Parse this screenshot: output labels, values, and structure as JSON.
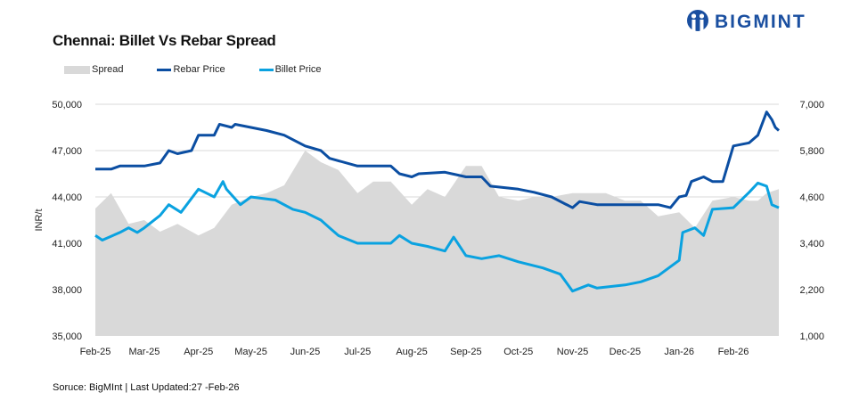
{
  "logo_text": "BIGMINT",
  "source": "Soruce: BigMInt | Last Updated:27 -Feb-26",
  "colors": {
    "spread": "#d9d9d9",
    "rebar": "#0b4ea2",
    "billet": "#0aa2e0",
    "grid": "#d9d9d9"
  },
  "chart_data": {
    "type": "line",
    "title": "Chennai: Billet Vs Rebar Spread",
    "ylabel": "INR/t",
    "ylim": [
      35000,
      50000
    ],
    "y2lim": [
      1000,
      7000
    ],
    "yticks": [
      "35,000",
      "38,000",
      "41,000",
      "44,000",
      "47,000",
      "50,000"
    ],
    "y2ticks": [
      "1,000",
      "2,200",
      "3,400",
      "4,600",
      "5,800",
      "7,000"
    ],
    "xticks": [
      "Feb-25",
      "Mar-25",
      "Apr-25",
      "May-25",
      "Jun-25",
      "Jul-25",
      "Aug-25",
      "Sep-25",
      "Oct-25",
      "Nov-25",
      "Dec-25",
      "Jan-26",
      "Feb-26"
    ],
    "xrange": [
      "2025-02-01",
      "2026-02-27"
    ],
    "grid": true,
    "legend_position": "top-left",
    "series": [
      {
        "name": "Spread",
        "type": "area",
        "axis": "right",
        "points": [
          [
            "2025-02-01",
            4300
          ],
          [
            "2025-02-10",
            4700
          ],
          [
            "2025-02-20",
            3900
          ],
          [
            "2025-03-01",
            4000
          ],
          [
            "2025-03-10",
            3700
          ],
          [
            "2025-03-20",
            3900
          ],
          [
            "2025-04-01",
            3600
          ],
          [
            "2025-04-10",
            3800
          ],
          [
            "2025-04-20",
            4400
          ],
          [
            "2025-05-01",
            4600
          ],
          [
            "2025-05-10",
            4700
          ],
          [
            "2025-05-20",
            4900
          ],
          [
            "2025-06-01",
            5800
          ],
          [
            "2025-06-10",
            5500
          ],
          [
            "2025-06-20",
            5300
          ],
          [
            "2025-07-01",
            4700
          ],
          [
            "2025-07-10",
            5000
          ],
          [
            "2025-07-20",
            5000
          ],
          [
            "2025-08-01",
            4400
          ],
          [
            "2025-08-10",
            4800
          ],
          [
            "2025-08-20",
            4600
          ],
          [
            "2025-09-01",
            5400
          ],
          [
            "2025-09-10",
            5400
          ],
          [
            "2025-09-20",
            4600
          ],
          [
            "2025-10-01",
            4500
          ],
          [
            "2025-10-10",
            4600
          ],
          [
            "2025-10-20",
            4600
          ],
          [
            "2025-11-01",
            4700
          ],
          [
            "2025-11-10",
            4700
          ],
          [
            "2025-11-20",
            4700
          ],
          [
            "2025-12-01",
            4500
          ],
          [
            "2025-12-10",
            4500
          ],
          [
            "2025-12-20",
            4100
          ],
          [
            "2026-01-01",
            4200
          ],
          [
            "2026-01-10",
            3800
          ],
          [
            "2026-01-20",
            4500
          ],
          [
            "2026-02-01",
            4600
          ],
          [
            "2026-02-10",
            4500
          ],
          [
            "2026-02-15",
            4500
          ],
          [
            "2026-02-20",
            4700
          ],
          [
            "2026-02-27",
            4800
          ]
        ]
      },
      {
        "name": "Rebar Price",
        "type": "line",
        "axis": "left",
        "points": [
          [
            "2025-02-01",
            45800
          ],
          [
            "2025-02-10",
            45800
          ],
          [
            "2025-02-15",
            46000
          ],
          [
            "2025-03-01",
            46000
          ],
          [
            "2025-03-10",
            46200
          ],
          [
            "2025-03-15",
            47000
          ],
          [
            "2025-03-20",
            46800
          ],
          [
            "2025-03-28",
            47000
          ],
          [
            "2025-04-01",
            48000
          ],
          [
            "2025-04-10",
            48000
          ],
          [
            "2025-04-13",
            48700
          ],
          [
            "2025-04-20",
            48500
          ],
          [
            "2025-04-22",
            48700
          ],
          [
            "2025-05-01",
            48500
          ],
          [
            "2025-05-10",
            48300
          ],
          [
            "2025-05-20",
            48000
          ],
          [
            "2025-06-01",
            47300
          ],
          [
            "2025-06-10",
            47000
          ],
          [
            "2025-06-15",
            46500
          ],
          [
            "2025-07-01",
            46000
          ],
          [
            "2025-07-20",
            46000
          ],
          [
            "2025-07-25",
            45500
          ],
          [
            "2025-08-01",
            45300
          ],
          [
            "2025-08-05",
            45500
          ],
          [
            "2025-08-20",
            45600
          ],
          [
            "2025-09-01",
            45300
          ],
          [
            "2025-09-10",
            45300
          ],
          [
            "2025-09-15",
            44700
          ],
          [
            "2025-10-01",
            44500
          ],
          [
            "2025-10-10",
            44300
          ],
          [
            "2025-10-20",
            44000
          ],
          [
            "2025-11-01",
            43300
          ],
          [
            "2025-11-05",
            43700
          ],
          [
            "2025-11-15",
            43500
          ],
          [
            "2025-12-01",
            43500
          ],
          [
            "2025-12-20",
            43500
          ],
          [
            "2025-12-27",
            43300
          ],
          [
            "2026-01-01",
            44000
          ],
          [
            "2026-01-05",
            44100
          ],
          [
            "2026-01-08",
            45000
          ],
          [
            "2026-01-15",
            45300
          ],
          [
            "2026-01-20",
            45000
          ],
          [
            "2026-01-26",
            45000
          ],
          [
            "2026-02-01",
            47300
          ],
          [
            "2026-02-10",
            47500
          ],
          [
            "2026-02-15",
            48000
          ],
          [
            "2026-02-20",
            49500
          ],
          [
            "2026-02-23",
            49000
          ],
          [
            "2026-02-25",
            48500
          ],
          [
            "2026-02-27",
            48300
          ]
        ]
      },
      {
        "name": "Billet Price",
        "type": "line",
        "axis": "left",
        "points": [
          [
            "2025-02-01",
            41500
          ],
          [
            "2025-02-05",
            41200
          ],
          [
            "2025-02-15",
            41700
          ],
          [
            "2025-02-20",
            42000
          ],
          [
            "2025-02-25",
            41700
          ],
          [
            "2025-03-01",
            42000
          ],
          [
            "2025-03-10",
            42800
          ],
          [
            "2025-03-15",
            43500
          ],
          [
            "2025-03-22",
            43000
          ],
          [
            "2025-04-01",
            44500
          ],
          [
            "2025-04-10",
            44000
          ],
          [
            "2025-04-15",
            45000
          ],
          [
            "2025-04-17",
            44500
          ],
          [
            "2025-04-25",
            43500
          ],
          [
            "2025-05-01",
            44000
          ],
          [
            "2025-05-15",
            43800
          ],
          [
            "2025-05-25",
            43200
          ],
          [
            "2025-06-01",
            43000
          ],
          [
            "2025-06-10",
            42500
          ],
          [
            "2025-06-15",
            42000
          ],
          [
            "2025-06-20",
            41500
          ],
          [
            "2025-07-01",
            41000
          ],
          [
            "2025-07-20",
            41000
          ],
          [
            "2025-07-25",
            41500
          ],
          [
            "2025-08-01",
            41000
          ],
          [
            "2025-08-10",
            40800
          ],
          [
            "2025-08-20",
            40500
          ],
          [
            "2025-08-25",
            41400
          ],
          [
            "2025-09-01",
            40200
          ],
          [
            "2025-09-10",
            40000
          ],
          [
            "2025-09-20",
            40200
          ],
          [
            "2025-10-01",
            39800
          ],
          [
            "2025-10-15",
            39400
          ],
          [
            "2025-10-25",
            39000
          ],
          [
            "2025-11-01",
            37900
          ],
          [
            "2025-11-10",
            38300
          ],
          [
            "2025-11-15",
            38100
          ],
          [
            "2025-12-01",
            38300
          ],
          [
            "2025-12-10",
            38500
          ],
          [
            "2025-12-20",
            38900
          ],
          [
            "2026-01-01",
            39900
          ],
          [
            "2026-01-03",
            41700
          ],
          [
            "2026-01-10",
            42000
          ],
          [
            "2026-01-15",
            41500
          ],
          [
            "2026-01-20",
            43200
          ],
          [
            "2026-02-01",
            43300
          ],
          [
            "2026-02-10",
            44300
          ],
          [
            "2026-02-15",
            44900
          ],
          [
            "2026-02-20",
            44700
          ],
          [
            "2026-02-23",
            43500
          ],
          [
            "2026-02-27",
            43300
          ]
        ]
      }
    ]
  }
}
